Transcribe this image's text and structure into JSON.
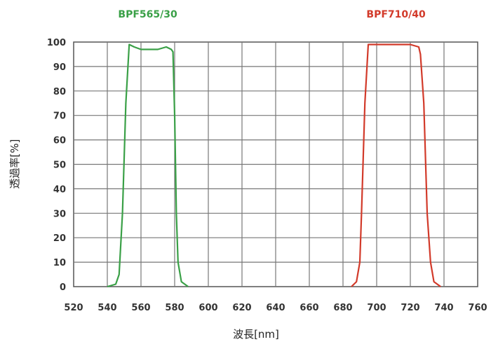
{
  "chart_data": {
    "type": "line",
    "xlabel": "波長[nm]",
    "ylabel": "透過率[%]",
    "xlim": [
      520,
      760
    ],
    "ylim": [
      0,
      100
    ],
    "x_ticks": [
      "520",
      "540",
      "560",
      "580",
      "600",
      "620",
      "640",
      "660",
      "680",
      "700",
      "720",
      "740",
      "760"
    ],
    "y_ticks": [
      "0",
      "10",
      "20",
      "30",
      "40",
      "50",
      "60",
      "70",
      "80",
      "90",
      "100"
    ],
    "grid": true,
    "series": [
      {
        "name": "BPF565/30",
        "color": "#3aa047",
        "x": [
          540,
          545,
          547,
          549,
          551,
          553,
          556,
          560,
          565,
          570,
          575,
          578,
          579,
          580,
          581,
          582,
          584,
          588
        ],
        "y": [
          0,
          1,
          5,
          30,
          75,
          99,
          98,
          97,
          97,
          97,
          98,
          97,
          96,
          70,
          30,
          10,
          2,
          0
        ]
      },
      {
        "name": "BPF710/40",
        "color": "#d23a2a",
        "x": [
          685,
          688,
          690,
          691,
          693,
          695,
          700,
          705,
          710,
          715,
          720,
          725,
          726,
          728,
          730,
          732,
          734,
          738
        ],
        "y": [
          0,
          2,
          10,
          30,
          75,
          99,
          99,
          99,
          99,
          99,
          99,
          98,
          95,
          75,
          30,
          10,
          2,
          0
        ]
      }
    ]
  }
}
